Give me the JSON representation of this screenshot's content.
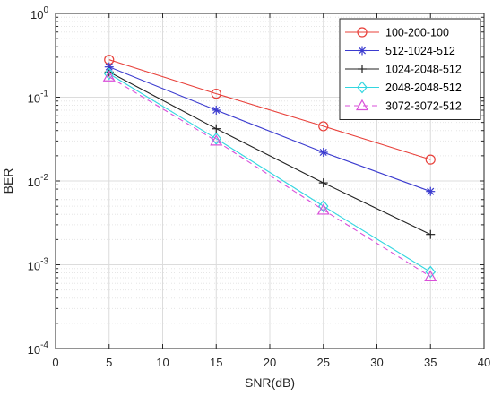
{
  "chart_data": {
    "type": "line",
    "title": "",
    "xlabel": "SNR(dB)",
    "ylabel": "BER",
    "xlim": [
      0,
      40
    ],
    "ylim": [
      0.0001,
      1
    ],
    "yscale": "log",
    "grid": true,
    "minor_grid": true,
    "legend_position": "top-right",
    "x_ticks": [
      "0",
      "5",
      "10",
      "15",
      "20",
      "25",
      "30",
      "35",
      "40"
    ],
    "y_ticks": [
      {
        "base": "10",
        "exp": "0"
      },
      {
        "base": "10",
        "exp": "-1"
      },
      {
        "base": "10",
        "exp": "-2"
      },
      {
        "base": "10",
        "exp": "-3"
      },
      {
        "base": "10",
        "exp": "-4"
      }
    ],
    "x": [
      5,
      15,
      25,
      35
    ],
    "series": [
      {
        "name": "100-200-100",
        "values": [
          0.28,
          0.11,
          0.045,
          0.018
        ],
        "color": "#e8403a",
        "marker": "circle",
        "dash": "solid"
      },
      {
        "name": "512-1024-512",
        "values": [
          0.23,
          0.07,
          0.022,
          0.0075
        ],
        "color": "#3b3bcf",
        "marker": "asterisk",
        "dash": "solid"
      },
      {
        "name": "1024-2048-512",
        "values": [
          0.2,
          0.042,
          0.0095,
          0.0023
        ],
        "color": "#222222",
        "marker": "plus",
        "dash": "solid"
      },
      {
        "name": "2048-2048-512",
        "values": [
          0.19,
          0.032,
          0.005,
          0.00082
        ],
        "color": "#33d6e0",
        "marker": "diamond",
        "dash": "solid"
      },
      {
        "name": "3072-3072-512",
        "values": [
          0.175,
          0.03,
          0.0045,
          0.00072
        ],
        "color": "#d94fd9",
        "marker": "triangle",
        "dash": "dashed"
      }
    ]
  }
}
